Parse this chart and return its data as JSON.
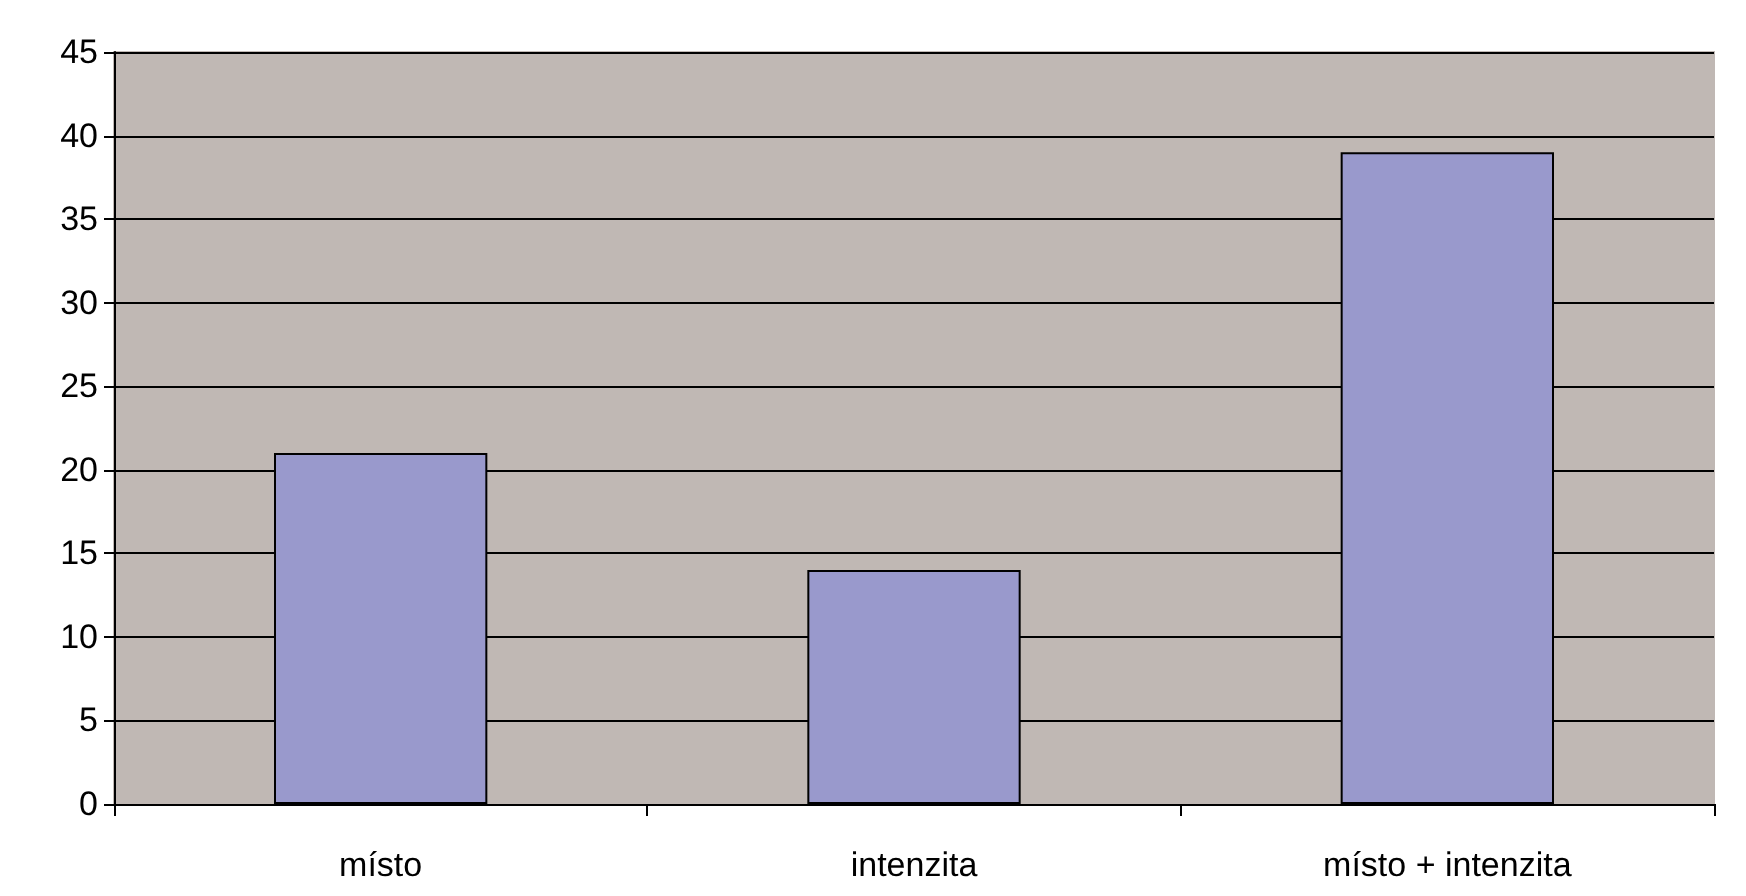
{
  "chart_data": {
    "type": "bar",
    "categories": [
      "místo",
      "intenzita",
      "místo + intenzita"
    ],
    "values": [
      21,
      14,
      39
    ],
    "color": "#9999cc",
    "ylim": [
      0,
      45
    ],
    "yticks": [
      0,
      5,
      10,
      15,
      20,
      25,
      30,
      35,
      40,
      45
    ],
    "grid": "y"
  }
}
